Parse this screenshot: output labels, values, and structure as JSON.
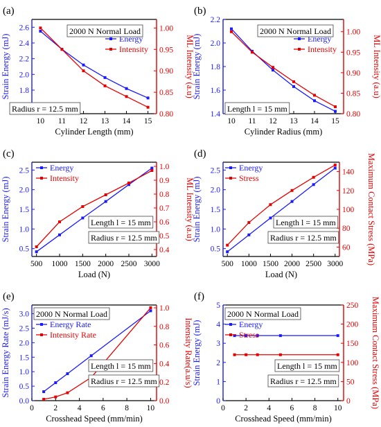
{
  "colors": {
    "energy": "#1a1aff",
    "intensity": "#e60000",
    "axis": "#000000",
    "box": "#444444"
  },
  "chart_data": [
    {
      "type": "line",
      "panel_label": "(a)",
      "xlabel": "Cylinder  Length (mm)",
      "ylabel_left": "Strain Energy (mJ)",
      "ylabel_right": "ML Intensity (a.u)",
      "xlim": [
        9.6,
        15.4
      ],
      "ylim_left": [
        1.5,
        2.7
      ],
      "ylim_right": [
        0.8,
        1.02
      ],
      "x_ticks": [
        "10",
        "11",
        "12",
        "13",
        "14",
        "15"
      ],
      "y_ticks_left": [
        "1.6",
        "1.8",
        "2.0",
        "2.2",
        "2.4",
        "2.6"
      ],
      "y_ticks_right": [
        "0.80",
        "0.85",
        "0.90",
        "0.95",
        "1.00"
      ],
      "x": [
        10,
        11,
        12,
        13,
        14,
        15
      ],
      "series": [
        {
          "name": "Energy",
          "axis": "left",
          "values": [
            2.55,
            2.32,
            2.12,
            1.96,
            1.82,
            1.7
          ]
        },
        {
          "name": "Intensity",
          "axis": "right",
          "values": [
            1.0,
            0.95,
            0.9,
            0.865,
            0.84,
            0.815
          ]
        }
      ],
      "legend": "top-right",
      "annotations": [
        "2000 N Normal Load",
        "Radius r = 12.5 mm"
      ]
    },
    {
      "type": "line",
      "panel_label": "(b)",
      "xlabel": "Cylinder Radius (mm)",
      "ylabel_left": "Strain Energy (mJ)",
      "ylabel_right": "ML Intensity (a.u)",
      "xlim": [
        9.6,
        15.4
      ],
      "ylim_left": [
        1.4,
        2.2
      ],
      "ylim_right": [
        0.8,
        1.03
      ],
      "x_ticks": [
        "10",
        "11",
        "12",
        "13",
        "14",
        "15"
      ],
      "y_ticks_left": [
        "1.4",
        "1.6",
        "1.8",
        "2.0",
        "2.2"
      ],
      "y_ticks_right": [
        "0.80",
        "0.85",
        "0.90",
        "0.95",
        "1.00"
      ],
      "x": [
        10,
        11,
        12,
        13,
        14,
        15
      ],
      "series": [
        {
          "name": "Energy",
          "axis": "left",
          "values": [
            2.12,
            1.93,
            1.77,
            1.63,
            1.51,
            1.42
          ]
        },
        {
          "name": "Intensity",
          "axis": "right",
          "values": [
            1.0,
            0.95,
            0.913,
            0.878,
            0.845,
            0.817
          ]
        }
      ],
      "legend": "top-right",
      "annotations": [
        "2000 N Normal Load",
        "Length l = 15 mm"
      ]
    },
    {
      "type": "line",
      "panel_label": "(c)",
      "xlabel": "Load (N)",
      "ylabel_left": "Strain Energy (mJ)",
      "ylabel_right": "ML Intensity (a.u)",
      "xlim": [
        400,
        3100
      ],
      "ylim_left": [
        0.3,
        2.7
      ],
      "ylim_right": [
        0.35,
        1.03
      ],
      "x_ticks": [
        "500",
        "1000",
        "1500",
        "2000",
        "2500",
        "3000"
      ],
      "y_ticks_left": [
        "0.5",
        "1.0",
        "1.5",
        "2.0",
        "2.5"
      ],
      "y_ticks_right": [
        "0.4",
        "0.5",
        "0.6",
        "0.7",
        "0.8",
        "0.9",
        "1.0"
      ],
      "x": [
        500,
        1000,
        1500,
        2000,
        2500,
        3000
      ],
      "series": [
        {
          "name": "Energy",
          "axis": "left",
          "values": [
            0.42,
            0.85,
            1.28,
            1.7,
            2.13,
            2.55
          ]
        },
        {
          "name": "Intensity",
          "axis": "right",
          "values": [
            0.42,
            0.6,
            0.71,
            0.795,
            0.88,
            0.97
          ]
        }
      ],
      "legend": "top-left",
      "annotations": [
        "Length l = 15 mm",
        "Radius r = 12.5 mm"
      ]
    },
    {
      "type": "line",
      "panel_label": "(d)",
      "xlabel": "Load (N)",
      "ylabel_left": "Strain Energy (mJ)",
      "ylabel_right": "Maximum Contact Stress (MPa)",
      "xlim": [
        400,
        3100
      ],
      "ylim_left": [
        0.3,
        2.7
      ],
      "ylim_right": [
        50,
        150
      ],
      "x_ticks": [
        "500",
        "1000",
        "1500",
        "2000",
        "2500",
        "3000"
      ],
      "y_ticks_left": [
        "0.5",
        "1.0",
        "1.5",
        "2.0",
        "2.5"
      ],
      "y_ticks_right": [
        "60",
        "80",
        "100",
        "120",
        "140"
      ],
      "x": [
        500,
        1000,
        1500,
        2000,
        2500,
        3000
      ],
      "series": [
        {
          "name": "Energy",
          "axis": "left",
          "values": [
            0.42,
            0.85,
            1.28,
            1.7,
            2.13,
            2.55
          ]
        },
        {
          "name": "Stress",
          "axis": "right",
          "values": [
            62,
            86,
            105,
            120,
            134,
            147
          ]
        }
      ],
      "legend": "top-left",
      "annotations": [
        "Length l = 15 mm",
        "Radius r = 12.5 mm"
      ]
    },
    {
      "type": "line",
      "panel_label": "(e)",
      "xlabel": "Crosshead Speed (mm/min)",
      "ylabel_left": "Strain Energy Rate (mJ/s)",
      "ylabel_right": "Intensity Rate(a.u/s)",
      "xlim": [
        0,
        10.5
      ],
      "ylim_left": [
        0,
        3.3
      ],
      "ylim_right": [
        0,
        1.03
      ],
      "x_ticks": [
        "0",
        "2",
        "4",
        "6",
        "8",
        "10"
      ],
      "y_ticks_left": [
        "0.0",
        "0.5",
        "1.0",
        "1.5",
        "2.0",
        "2.5",
        "3.0"
      ],
      "y_ticks_right": [
        "0.0",
        "0.2",
        "0.4",
        "0.6",
        "0.8",
        "1.0"
      ],
      "x": [
        1,
        2,
        3,
        5,
        10
      ],
      "series": [
        {
          "name": "Energy Rate",
          "axis": "left",
          "values": [
            0.31,
            0.62,
            0.93,
            1.55,
            3.1
          ]
        },
        {
          "name": "Intensity Rate",
          "axis": "right",
          "values": [
            0.015,
            0.04,
            0.085,
            0.25,
            1.0
          ]
        }
      ],
      "legend": "top-left",
      "annotations": [
        "2000 N Normal Load",
        "Length l = 15 mm",
        "Radius r = 12.5 mm"
      ]
    },
    {
      "type": "line",
      "panel_label": "(f)",
      "xlabel": "Crosshead Speed  (mm/min)",
      "ylabel_left": "Strain Energy  (mJ)",
      "ylabel_right": "Maximum Contact Stress (MPa)",
      "xlim": [
        0,
        10.5
      ],
      "ylim_left": [
        0,
        5
      ],
      "ylim_right": [
        0,
        250
      ],
      "x_ticks": [
        "0",
        "2",
        "4",
        "6",
        "8",
        "10"
      ],
      "y_ticks_left": [
        "0",
        "1",
        "2",
        "3",
        "4",
        "5"
      ],
      "y_ticks_right": [
        "0",
        "50",
        "100",
        "150",
        "200",
        "250"
      ],
      "x": [
        1,
        2,
        3,
        5,
        10
      ],
      "series": [
        {
          "name": "Energy",
          "axis": "left",
          "values": [
            3.4,
            3.4,
            3.4,
            3.4,
            3.4
          ]
        },
        {
          "name": "Stress",
          "axis": "right",
          "values": [
            120,
            120,
            120,
            120,
            120
          ]
        }
      ],
      "legend": "top-left",
      "annotations": [
        "2000 N Normal Load",
        "Length l = 15 mm",
        "Radius r = 12.5 mm"
      ]
    }
  ]
}
